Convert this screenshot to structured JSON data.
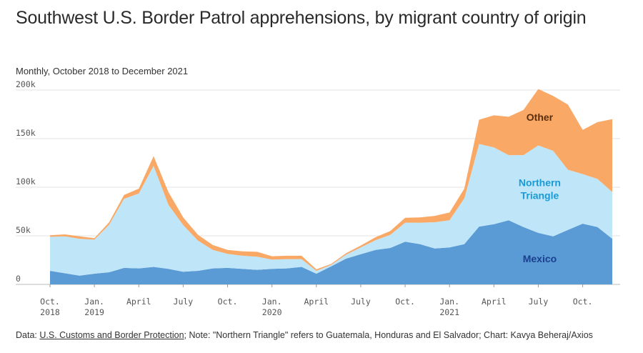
{
  "header": {
    "title": "Southwest U.S. Border Patrol apprehensions, by migrant country of origin",
    "subtitle": "Monthly, October 2018 to December 2021"
  },
  "footer": {
    "prefix": "Data: ",
    "source_link": "U.S. Customs and Border Protection",
    "note": "; Note: \"Northern Triangle\" refers to Guatemala, Honduras and El Salvador; Chart: Kavya Beheraj/Axios"
  },
  "chart_data": {
    "type": "area",
    "stacked": true,
    "x": [
      "2018-10",
      "2018-11",
      "2018-12",
      "2019-01",
      "2019-02",
      "2019-03",
      "2019-04",
      "2019-05",
      "2019-06",
      "2019-07",
      "2019-08",
      "2019-09",
      "2019-10",
      "2019-11",
      "2019-12",
      "2020-01",
      "2020-02",
      "2020-03",
      "2020-04",
      "2020-05",
      "2020-06",
      "2020-07",
      "2020-08",
      "2020-09",
      "2020-10",
      "2020-11",
      "2020-12",
      "2021-01",
      "2021-02",
      "2021-03",
      "2021-04",
      "2021-05",
      "2021-06",
      "2021-07",
      "2021-08",
      "2021-09",
      "2021-10",
      "2021-11",
      "2021-12"
    ],
    "series": [
      {
        "name": "Mexico",
        "color": "#5b9bd5",
        "label_color": "#1a3f8f",
        "values": [
          14000,
          11500,
          9000,
          11000,
          12500,
          17000,
          16500,
          18000,
          16000,
          13000,
          14000,
          16500,
          17000,
          16000,
          15000,
          16000,
          16500,
          18000,
          11000,
          18500,
          26500,
          31000,
          35500,
          37500,
          44000,
          41500,
          37000,
          38000,
          41500,
          59500,
          62000,
          66000,
          59000,
          53000,
          49500,
          56000,
          62500,
          59000,
          47000
        ]
      },
      {
        "name": "Northern Triangle",
        "color": "#bfe6f8",
        "label_color": "#1a9ad6",
        "values": [
          35000,
          38000,
          38000,
          35000,
          49000,
          71000,
          77000,
          104000,
          66000,
          48000,
          31000,
          19000,
          14500,
          13500,
          13500,
          9500,
          9500,
          8000,
          3000,
          1500,
          4000,
          7000,
          10000,
          13500,
          19500,
          22000,
          27000,
          28000,
          47000,
          85000,
          79000,
          67000,
          74000,
          90000,
          88000,
          62000,
          51000,
          49500,
          48000
        ]
      },
      {
        "name": "Other",
        "color": "#f9a865",
        "label_color": "#5a2e0c",
        "values": [
          1500,
          2000,
          2500,
          1500,
          2500,
          4000,
          5000,
          10000,
          13000,
          8000,
          6000,
          5000,
          4000,
          4500,
          5000,
          3500,
          3500,
          3500,
          1500,
          1000,
          1500,
          2000,
          3000,
          4000,
          5000,
          5500,
          6500,
          8000,
          10000,
          25000,
          33000,
          39500,
          46500,
          58000,
          56500,
          67000,
          45500,
          58500,
          75000
        ]
      }
    ],
    "y_ticks": [
      "0",
      "50k",
      "100k",
      "150k",
      "200k"
    ],
    "ylim": [
      0,
      200000
    ],
    "x_ticks": [
      {
        "label": "Oct.",
        "sub": "2018",
        "at": "2018-10"
      },
      {
        "label": "Jan.",
        "sub": "2019",
        "at": "2019-01"
      },
      {
        "label": "April",
        "sub": "",
        "at": "2019-04"
      },
      {
        "label": "July",
        "sub": "",
        "at": "2019-07"
      },
      {
        "label": "Oct.",
        "sub": "",
        "at": "2019-10"
      },
      {
        "label": "Jan.",
        "sub": "2020",
        "at": "2020-01"
      },
      {
        "label": "April",
        "sub": "",
        "at": "2020-04"
      },
      {
        "label": "July",
        "sub": "",
        "at": "2020-07"
      },
      {
        "label": "Oct.",
        "sub": "",
        "at": "2020-10"
      },
      {
        "label": "Jan.",
        "sub": "2021",
        "at": "2021-01"
      },
      {
        "label": "April",
        "sub": "",
        "at": "2021-04"
      },
      {
        "label": "July",
        "sub": "",
        "at": "2021-07"
      },
      {
        "label": "Oct.",
        "sub": "",
        "at": "2021-10"
      }
    ],
    "grid": true,
    "series_labels": [
      {
        "text": "Other",
        "series": "Other",
        "line2": ""
      },
      {
        "text": "Northern",
        "series": "Northern Triangle",
        "line2": "Triangle"
      },
      {
        "text": "Mexico",
        "series": "Mexico",
        "line2": ""
      }
    ]
  }
}
